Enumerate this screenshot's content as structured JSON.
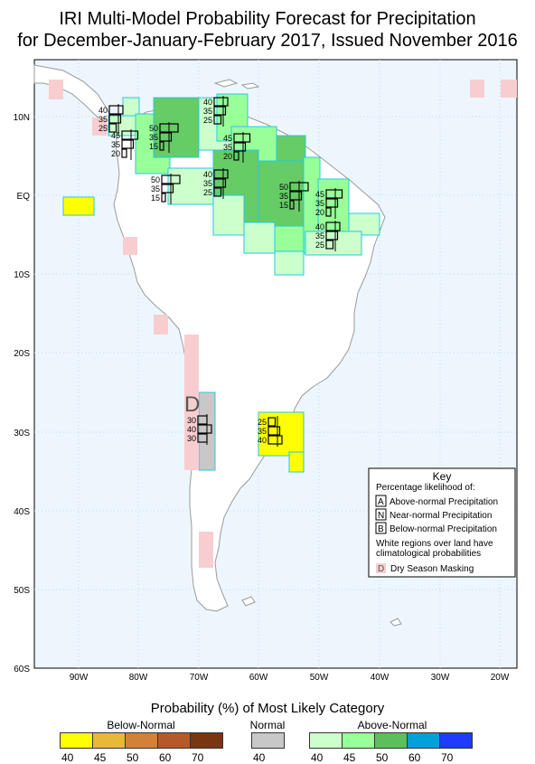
{
  "title_line1": "IRI Multi-Model Probability Forecast for Precipitation",
  "title_line2": "for December-January-February 2017, Issued November 2016",
  "lat_labels": [
    "10N",
    "EQ",
    "10S",
    "20S",
    "30S",
    "40S",
    "50S",
    "60S"
  ],
  "lon_labels": [
    "90W",
    "80W",
    "70W",
    "60W",
    "50W",
    "40W",
    "30W",
    "20W"
  ],
  "colors": {
    "ocean": "#eef6fd",
    "dry_mask": "#f8cdd0",
    "below_40": "#ffff00",
    "normal_40": "#c8c8c8",
    "above_40": "#ccffcc",
    "above_45": "#99ff99",
    "above_50": "#66cc66",
    "land_border": "#9a9a9a"
  },
  "prob_boxes": [
    {
      "a": "40",
      "n": "35",
      "b": "25"
    },
    {
      "a": "50",
      "n": "35",
      "b": "15"
    },
    {
      "a": "40",
      "n": "35",
      "b": "25"
    },
    {
      "a": "45",
      "n": "35",
      "b": "20"
    },
    {
      "a": "45",
      "n": "35",
      "b": "20"
    },
    {
      "a": "50",
      "n": "35",
      "b": "15"
    },
    {
      "a": "40",
      "n": "35",
      "b": "25"
    },
    {
      "a": "50",
      "n": "35",
      "b": "15"
    },
    {
      "a": "45",
      "n": "35",
      "b": "20"
    },
    {
      "a": "40",
      "n": "35",
      "b": "25"
    },
    {
      "a": "30",
      "n": "40",
      "b": "30"
    },
    {
      "a": "25",
      "n": "35",
      "b": "40"
    }
  ],
  "dry_season_letter": "D",
  "key": {
    "title": "Key",
    "subtitle": "Percentage likelihood of:",
    "a_letter": "A",
    "a_text": "Above-normal Precipitation",
    "n_letter": "N",
    "n_text": "Near-normal Precipitation",
    "b_letter": "B",
    "b_text": "Below-normal Precipitation",
    "white_note_1": "White regions over land have",
    "white_note_2": "climatological probabilities",
    "d_letter": "D",
    "d_text": "Dry Season Masking"
  },
  "legend": {
    "title": "Probability (%) of Most Likely Category",
    "below_label": "Below-Normal",
    "normal_label": "Normal",
    "above_label": "Above-Normal",
    "below_ticks": [
      "40",
      "45",
      "50",
      "60",
      "70"
    ],
    "normal_ticks": [
      "40"
    ],
    "above_ticks": [
      "40",
      "45",
      "50",
      "60",
      "70"
    ],
    "below_colors": [
      "#ffff00",
      "#e8b838",
      "#d2813a",
      "#b45a2a",
      "#7a3512"
    ],
    "normal_colors": [
      "#c8c8c8"
    ],
    "above_colors": [
      "#ccffcc",
      "#99ff99",
      "#5cbf5c",
      "#00a0d8",
      "#1e3cff"
    ]
  }
}
